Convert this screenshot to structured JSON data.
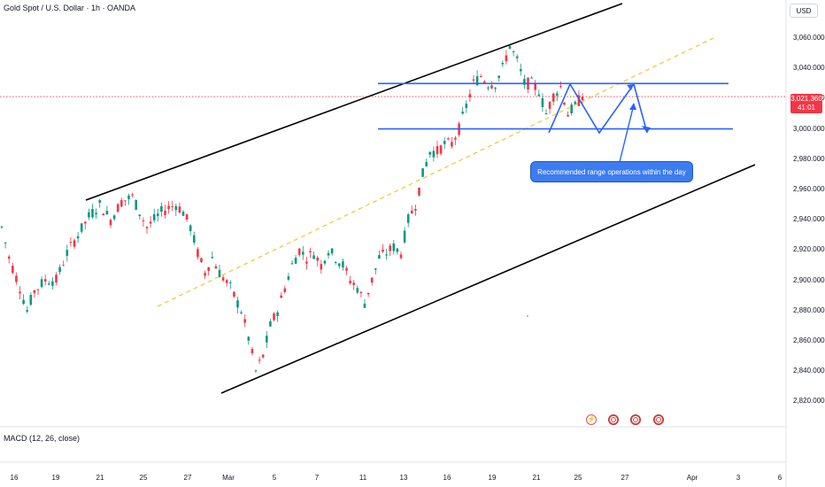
{
  "header": {
    "symbol_title": "Gold Spot / U.S. Dollar · 1h · OANDA",
    "currency": "USD"
  },
  "indicator": {
    "label": "MACD (12, 26, close)"
  },
  "price_tag": {
    "price": "3,021.360",
    "countdown": "41:01"
  },
  "annotation": {
    "text": "Recommended range operations within the day"
  },
  "colors": {
    "bull": "#089981",
    "bear": "#f23645",
    "channel": "#000000",
    "range": "#2962ff",
    "trend": "#f5c842"
  },
  "chart_data": {
    "type": "candlestick",
    "title": "Gold Spot / U.S. Dollar · 1h · OANDA",
    "y_ticks": [
      "3,060.000",
      "3,040.000",
      "3,020.000",
      "3,000.000",
      "2,980.000",
      "2,960.000",
      "2,940.000",
      "2,920.000",
      "2,900.000",
      "2,880.000",
      "2,860.000",
      "2,840.000",
      "2,820.000"
    ],
    "x_ticks": [
      "16",
      "19",
      "21",
      "25",
      "27",
      "Mar",
      "5",
      "7",
      "11",
      "13",
      "16",
      "19",
      "21",
      "25",
      "27",
      "Apr",
      "3",
      "6"
    ],
    "ylim": [
      2815,
      3075
    ],
    "current_price": 3021.36,
    "price_path": [
      [
        0,
        2935
      ],
      [
        2,
        2915
      ],
      [
        5,
        2895
      ],
      [
        7,
        2880
      ],
      [
        9,
        2893
      ],
      [
        12,
        2900
      ],
      [
        15,
        2900
      ],
      [
        18,
        2918
      ],
      [
        21,
        2930
      ],
      [
        24,
        2942
      ],
      [
        27,
        2950
      ],
      [
        30,
        2940
      ],
      [
        33,
        2952
      ],
      [
        36,
        2955
      ],
      [
        38,
        2945
      ],
      [
        40,
        2935
      ],
      [
        42,
        2940
      ],
      [
        44,
        2945
      ],
      [
        46,
        2948
      ],
      [
        48,
        2950
      ],
      [
        50,
        2945
      ],
      [
        52,
        2935
      ],
      [
        54,
        2918
      ],
      [
        56,
        2905
      ],
      [
        58,
        2915
      ],
      [
        60,
        2905
      ],
      [
        63,
        2895
      ],
      [
        66,
        2880
      ],
      [
        68,
        2862
      ],
      [
        70,
        2840
      ],
      [
        72,
        2850
      ],
      [
        74,
        2870
      ],
      [
        76,
        2880
      ],
      [
        78,
        2895
      ],
      [
        80,
        2910
      ],
      [
        82,
        2920
      ],
      [
        84,
        2915
      ],
      [
        86,
        2918
      ],
      [
        88,
        2910
      ],
      [
        90,
        2920
      ],
      [
        92,
        2915
      ],
      [
        94,
        2910
      ],
      [
        96,
        2900
      ],
      [
        98,
        2895
      ],
      [
        100,
        2885
      ],
      [
        102,
        2900
      ],
      [
        104,
        2915
      ],
      [
        106,
        2918
      ],
      [
        108,
        2922
      ],
      [
        110,
        2918
      ],
      [
        112,
        2940
      ],
      [
        114,
        2950
      ],
      [
        116,
        2970
      ],
      [
        118,
        2985
      ],
      [
        120,
        2985
      ],
      [
        122,
        2990
      ],
      [
        124,
        2990
      ],
      [
        126,
        3000
      ],
      [
        128,
        3015
      ],
      [
        130,
        3030
      ],
      [
        132,
        3035
      ],
      [
        134,
        3030
      ],
      [
        136,
        3030
      ],
      [
        138,
        3040
      ],
      [
        140,
        3055
      ],
      [
        141,
        3050
      ],
      [
        142,
        3045
      ],
      [
        144,
        3030
      ],
      [
        146,
        3030
      ],
      [
        148,
        3025
      ],
      [
        150,
        3010
      ],
      [
        152,
        3022
      ],
      [
        154,
        3028
      ],
      [
        156,
        3010
      ],
      [
        158,
        3015
      ],
      [
        160,
        3022
      ]
    ],
    "drawings": {
      "channel_upper": [
        [
          2955,
          "Feb 20"
        ],
        [
          3075,
          "Mar 27"
        ]
      ],
      "channel_lower": [
        [
          2832,
          "Feb 28"
        ],
        [
          2980,
          "Apr 5"
        ]
      ],
      "range_high": 3030,
      "range_low": 3000,
      "trend_dashed": "yellow"
    }
  }
}
